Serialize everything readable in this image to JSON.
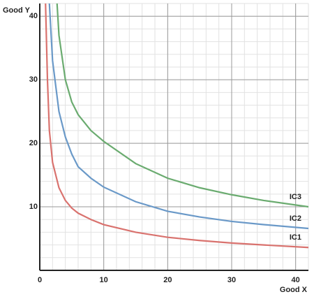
{
  "chart_data": {
    "type": "line",
    "x_label": "Good X",
    "y_label": "Good Y",
    "xlim": [
      0,
      42
    ],
    "ylim": [
      0,
      42
    ],
    "xticks": [
      0,
      10,
      20,
      30,
      40
    ],
    "yticks": [
      10,
      20,
      30,
      40
    ],
    "grid": true,
    "minor_grid_step": 2,
    "series": [
      {
        "name": "IC1",
        "color": "#d9726e",
        "x": [
          0.9,
          1.2,
          1.5,
          2,
          3,
          4,
          5,
          6,
          8,
          10,
          15,
          20,
          25,
          30,
          35,
          42
        ],
        "values": [
          42,
          30,
          22,
          17,
          13,
          11,
          9.8,
          9,
          8,
          7.2,
          6,
          5.2,
          4.7,
          4.3,
          4,
          3.6
        ]
      },
      {
        "name": "IC2",
        "color": "#6a99c8",
        "x": [
          1.5,
          2,
          3,
          4,
          5,
          6,
          8,
          10,
          15,
          20,
          25,
          30,
          35,
          42
        ],
        "values": [
          42,
          33,
          25,
          21,
          18.3,
          16.3,
          14.5,
          13.1,
          10.8,
          9.3,
          8.4,
          7.7,
          7.2,
          6.6
        ]
      },
      {
        "name": "IC3",
        "color": "#6aab6f",
        "x": [
          2.7,
          3,
          4,
          5,
          6,
          8,
          10,
          15,
          20,
          25,
          30,
          35,
          42
        ],
        "values": [
          42,
          37,
          30,
          26.5,
          24.5,
          22,
          20.3,
          16.8,
          14.5,
          13,
          11.9,
          11,
          10
        ]
      }
    ]
  }
}
